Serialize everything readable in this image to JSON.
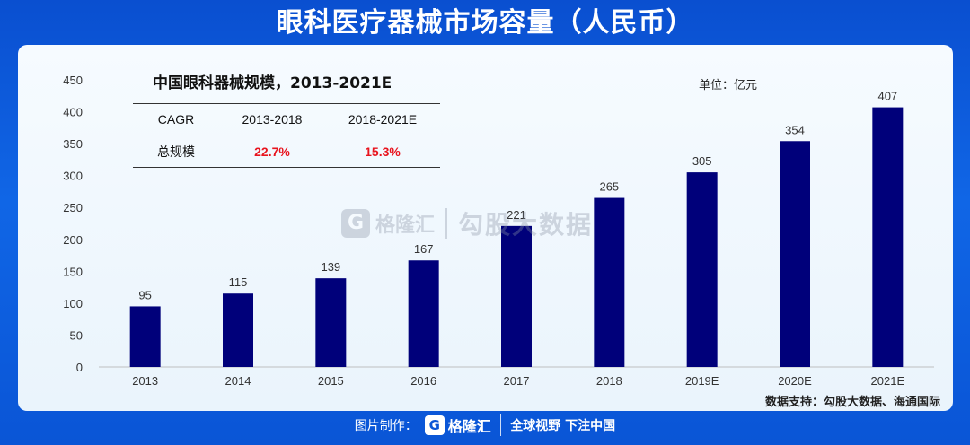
{
  "page_title": "眼科医疗器械市场容量（人民币）",
  "inset": {
    "title": "中国眼科器械规模，2013-2021E",
    "table": {
      "headers": [
        "CAGR",
        "2013-2018",
        "2018-2021E"
      ],
      "row": [
        "总规模",
        "22.7%",
        "15.3%"
      ]
    }
  },
  "unit": "单位：亿元",
  "source": "数据支持：勾股大数据、海通国际",
  "watermark": {
    "g": "G",
    "name": "格隆汇",
    "name2": "勾股大数据"
  },
  "footer": {
    "prefix": "图片制作：",
    "g": "G",
    "name": "格隆汇",
    "slogan": "全球视野 下注中国"
  },
  "colors": {
    "bar": "#00007a",
    "header_bg": "#0a55d6",
    "highlight": "#e8141e"
  },
  "chart_data": {
    "type": "bar",
    "categories": [
      "2013",
      "2014",
      "2015",
      "2016",
      "2017",
      "2018",
      "2019E",
      "2020E",
      "2021E"
    ],
    "values": [
      95,
      115,
      139,
      167,
      221,
      265,
      305,
      354,
      407
    ],
    "ylim": [
      0,
      450
    ],
    "yticks": [
      0,
      50,
      100,
      150,
      200,
      250,
      300,
      350,
      400,
      450
    ],
    "data_labels": true,
    "grid": false
  }
}
